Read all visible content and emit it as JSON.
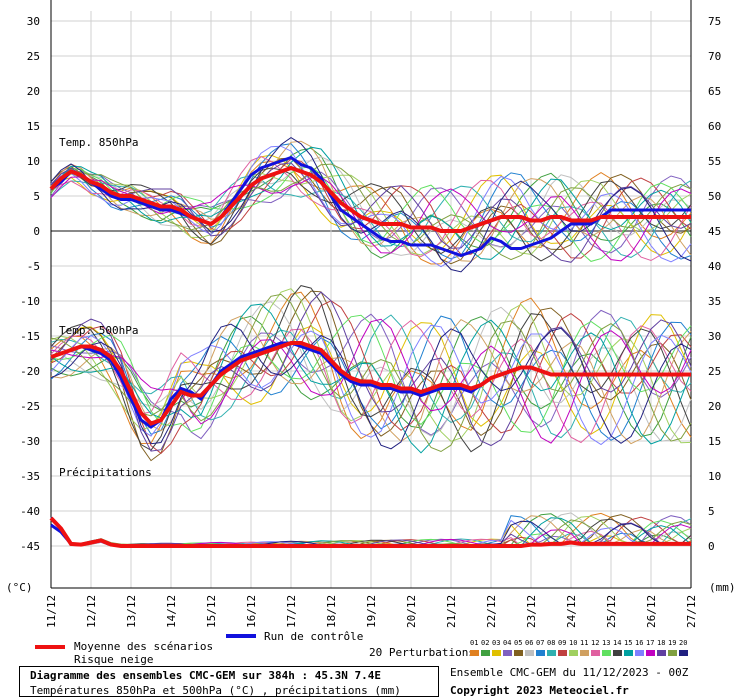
{
  "chart_data": {
    "type": "line",
    "left_axis_unit": "(°C)",
    "right_axis_unit": "(mm)",
    "left_ticks": [
      30,
      25,
      20,
      15,
      10,
      5,
      0,
      -5,
      -10,
      -15,
      -20,
      -25,
      -30,
      -35,
      -40,
      -45
    ],
    "right_ticks": [
      75,
      70,
      65,
      60,
      55,
      50,
      45,
      40,
      35,
      30,
      25,
      20,
      15,
      10,
      5,
      0
    ],
    "x_labels": [
      "11/12",
      "12/12",
      "13/12",
      "14/12",
      "15/12",
      "16/12",
      "17/12",
      "18/12",
      "19/12",
      "20/12",
      "21/12",
      "22/12",
      "23/12",
      "24/12",
      "25/12",
      "26/12",
      "27/12"
    ],
    "panels": {
      "t850_label": "Temp. 850hPa",
      "t500_label": "Temp. 500hPa",
      "precip_label": "Précipitations"
    },
    "step_days": 0.25,
    "series": [
      {
        "name": "Moyenne des scénarios",
        "color": "#ee1111",
        "t850": [
          6,
          7.5,
          8.5,
          8,
          7,
          6.5,
          5.5,
          5,
          5,
          4.5,
          4,
          3.5,
          3.5,
          3,
          2,
          1.5,
          1,
          2,
          3.5,
          5,
          6.5,
          7.5,
          8,
          8.5,
          9,
          8.5,
          8,
          7,
          5.5,
          4,
          3,
          2,
          1.5,
          1,
          1,
          1,
          0.5,
          0.5,
          0.5,
          0,
          0,
          0,
          0.5,
          1,
          1.5,
          2,
          2,
          2,
          1.5,
          1.5,
          2,
          2,
          1.5,
          1.5,
          1.5,
          2,
          2,
          2,
          2,
          2,
          2,
          2,
          2,
          2,
          2
        ],
        "t500": [
          -18,
          -17.5,
          -17,
          -16.5,
          -16.5,
          -17,
          -18,
          -20,
          -23,
          -26,
          -27.5,
          -27,
          -25,
          -23,
          -23.5,
          -23.5,
          -22,
          -20.5,
          -19.5,
          -18.5,
          -18,
          -17.5,
          -17,
          -16.5,
          -16,
          -16,
          -16.5,
          -17,
          -18.5,
          -20,
          -21,
          -21.5,
          -21.5,
          -22,
          -22,
          -22.5,
          -22.5,
          -23,
          -22.5,
          -22,
          -22,
          -22,
          -22.5,
          -22,
          -21,
          -20.5,
          -20,
          -19.5,
          -19.5,
          -20,
          -20.5,
          -20.5,
          -20.5,
          -20.5,
          -20.5,
          -20.5,
          -20.5,
          -20.5,
          -20.5,
          -20.5,
          -20.5,
          -20.5,
          -20.5,
          -20.5,
          -20.5
        ],
        "precip": [
          4,
          2.5,
          0.3,
          0.2,
          0.5,
          0.8,
          0.2,
          0,
          0,
          0,
          0,
          0,
          0,
          0,
          0,
          0,
          0,
          0,
          0,
          0,
          0,
          0,
          0,
          0,
          0,
          0,
          0,
          0,
          0,
          0,
          0,
          0,
          0,
          0,
          0,
          0,
          0,
          0,
          0,
          0,
          0,
          0,
          0,
          0,
          0,
          0,
          0,
          0,
          0.2,
          0.2,
          0.3,
          0.3,
          0.5,
          0.3,
          0.3,
          0.3,
          0.3,
          0.3,
          0.3,
          0.3,
          0.3,
          0.3,
          0.3,
          0.3,
          0.3
        ]
      },
      {
        "name": "Run de contrôle",
        "color": "#1111dd",
        "t850": [
          6,
          7,
          8.5,
          8,
          7,
          6,
          5,
          4.5,
          4.5,
          4,
          3.5,
          3,
          3,
          2.5,
          2,
          1.5,
          1,
          2,
          4,
          6,
          8,
          9,
          9.5,
          10,
          10.5,
          9.5,
          9,
          7.5,
          5,
          3,
          2,
          1,
          0,
          -1,
          -1.5,
          -1.5,
          -2,
          -2,
          -2,
          -2.5,
          -3,
          -3.5,
          -3,
          -2.5,
          -1,
          -1.5,
          -2.5,
          -2.5,
          -2,
          -1.5,
          -1,
          0,
          1,
          1,
          1,
          2,
          3,
          3,
          3,
          3,
          3,
          3,
          3,
          3,
          3
        ],
        "t500": [
          -18,
          -17.5,
          -17,
          -16.5,
          -17,
          -17.5,
          -18.5,
          -21,
          -24,
          -27,
          -28,
          -27,
          -24,
          -22.5,
          -23,
          -24,
          -22,
          -20,
          -19,
          -18,
          -17.5,
          -17,
          -16.5,
          -16,
          -16,
          -16.5,
          -17,
          -17.5,
          -19,
          -20.5,
          -21.5,
          -22,
          -22,
          -22.5,
          -22.5,
          -23,
          -23,
          -23.5,
          -23,
          -22.5,
          -22.5,
          -22.5,
          -23,
          -22,
          -21,
          -20.5,
          -20,
          -19.5,
          -19.5,
          -20,
          -20.5,
          -20.5,
          -20.5,
          -20.5,
          -20.5,
          -20.5,
          -20.5,
          -20.5,
          -20.5,
          -20.5,
          -20.5,
          -20.5,
          -20.5,
          -20.5,
          -20.5
        ],
        "precip": [
          3,
          2,
          0.3,
          0.2,
          0.5,
          0.8,
          0.2,
          0,
          0,
          0,
          0,
          0,
          0,
          0,
          0,
          0,
          0,
          0,
          0,
          0,
          0,
          0,
          0,
          0,
          0,
          0,
          0,
          0,
          0,
          0,
          0,
          0,
          0,
          0,
          0,
          0,
          0,
          0,
          0,
          0,
          0,
          0,
          0,
          0,
          0,
          0,
          0,
          0,
          0.2,
          0.2,
          0.3,
          0.3,
          0.5,
          0.3,
          0.3,
          0.3,
          0.3,
          0.3,
          0.3,
          0.3,
          0.3,
          0.3,
          0.3,
          0.3,
          0.3
        ]
      }
    ],
    "perturbation_colors": [
      "#e08020",
      "#40a040",
      "#e0c000",
      "#8060c0",
      "#806020",
      "#c0c0c0",
      "#2080d0",
      "#30b0b0",
      "#c04040",
      "#a0d060",
      "#d0a060",
      "#e060a0",
      "#60e060",
      "#404040",
      "#00a0a0",
      "#8080ff",
      "#c000c0",
      "#6040a0",
      "#80a040",
      "#202080"
    ]
  },
  "legend": {
    "mean_label": "Moyenne des scénarios",
    "snow_label": "Risque neige",
    "control_label": "Run de contrôle",
    "perturbations_label": "20 Perturbations",
    "perturbation_numbers": [
      "01",
      "02",
      "03",
      "04",
      "05",
      "06",
      "07",
      "08",
      "09",
      "10",
      "11",
      "12",
      "13",
      "14",
      "15",
      "16",
      "17",
      "18",
      "19",
      "20"
    ],
    "mean_color": "#ee1111",
    "control_color": "#1111dd"
  },
  "footer": {
    "title": "Diagramme des ensembles CMC-GEM sur 384h : 45.3N 7.4E",
    "subtitle": "Températures 850hPa et 500hPa (°C) , précipitations (mm)",
    "ensemble_info": "Ensemble CMC-GEM du 11/12/2023 - 00Z",
    "copyright": "Copyright 2023 Meteociel.fr"
  }
}
